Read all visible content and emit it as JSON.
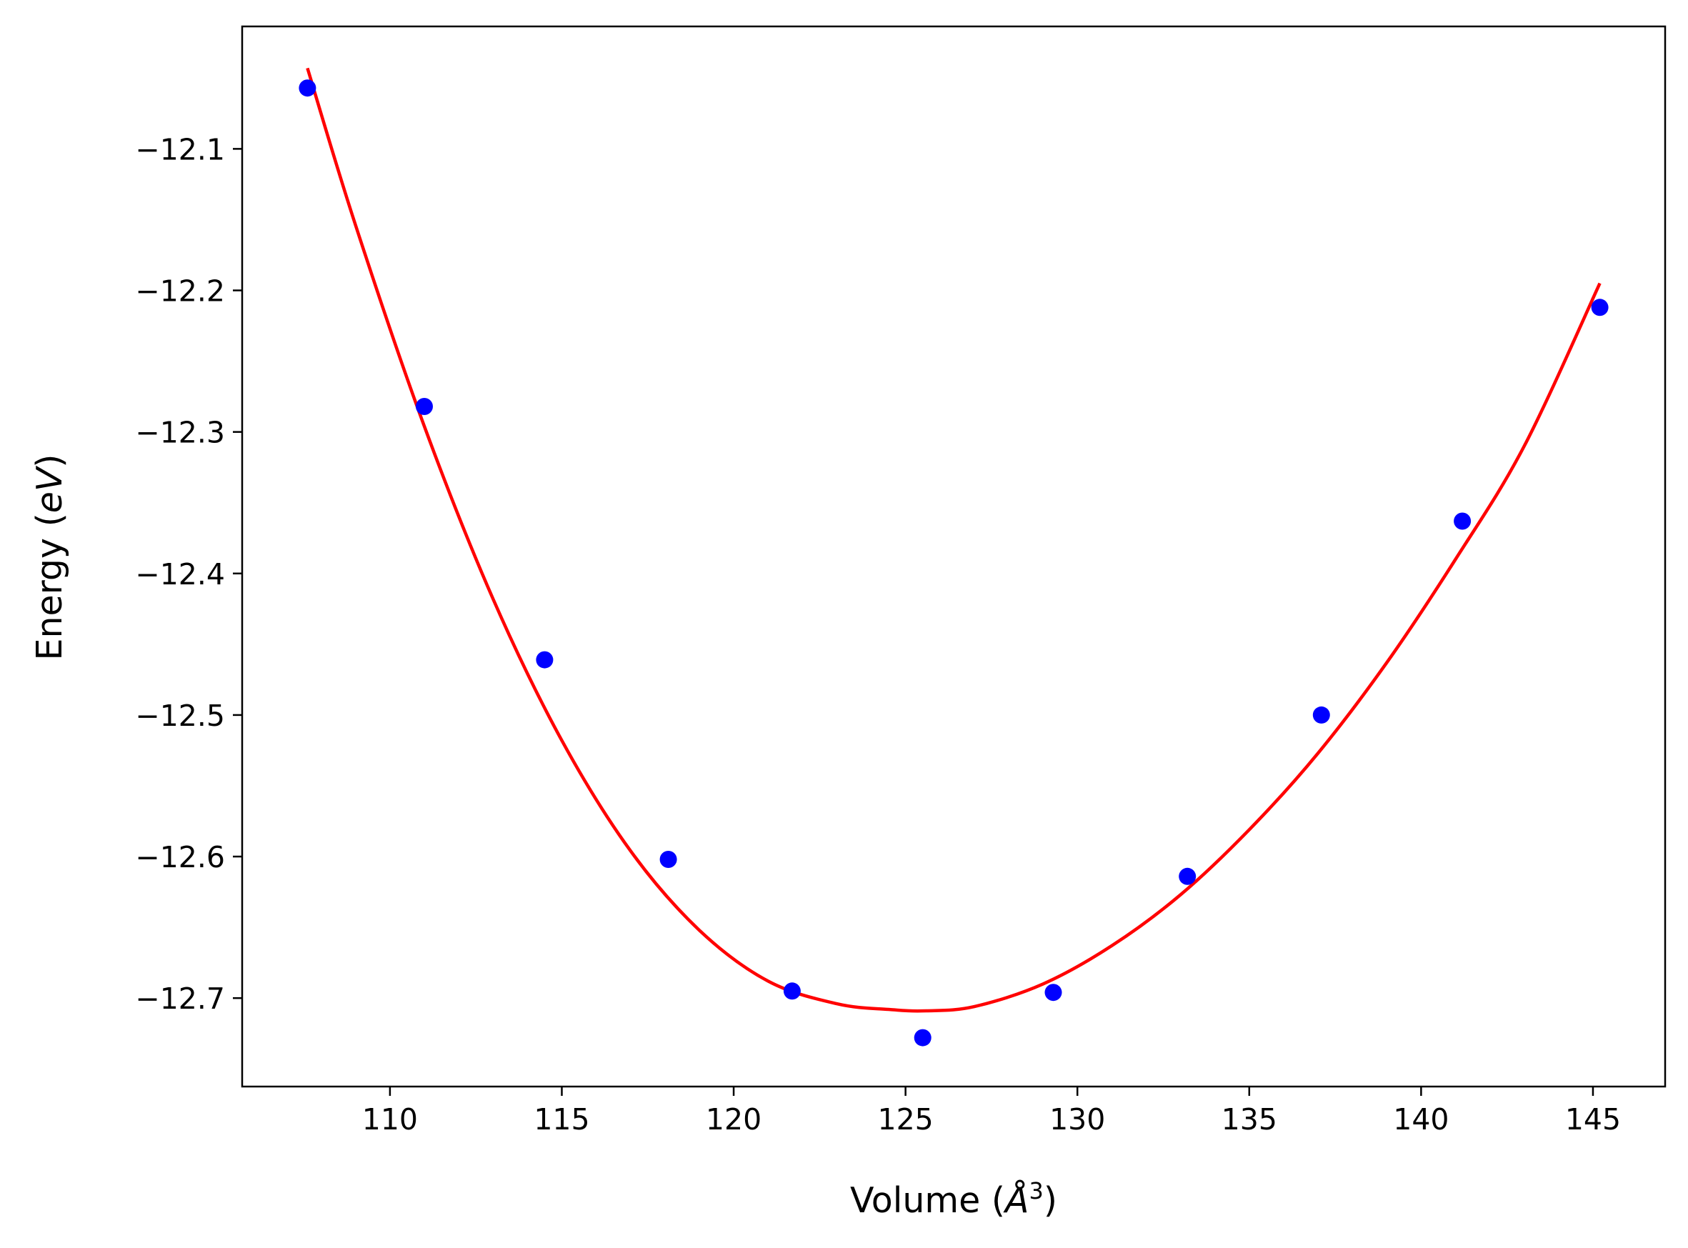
{
  "chart_data": {
    "type": "scatter",
    "title": "",
    "xlabel": "Volume (Å³)",
    "xlabel_parts": {
      "before": "Volume (",
      "symbol": "Å",
      "sup": "3",
      "after": ")"
    },
    "ylabel": "Energy (eV)",
    "ylabel_parts": {
      "before": "Energy (",
      "italic": "eV",
      "after": ")"
    },
    "xlim": [
      105.7,
      147.1
    ],
    "ylim": [
      -12.7625,
      -12.0135
    ],
    "xticks": [
      110,
      115,
      120,
      125,
      130,
      135,
      140,
      145
    ],
    "yticks": [
      -12.1,
      -12.2,
      -12.3,
      -12.4,
      -12.5,
      -12.6,
      -12.7
    ],
    "xtick_labels": [
      "110",
      "115",
      "120",
      "125",
      "130",
      "135",
      "140",
      "145"
    ],
    "ytick_labels": [
      "−12.1",
      "−12.2",
      "−12.3",
      "−12.4",
      "−12.5",
      "−12.6",
      "−12.7"
    ],
    "grid": false,
    "series": [
      {
        "kind": "points",
        "color": "#0000ff",
        "x": [
          107.6,
          111.0,
          114.5,
          118.1,
          121.7,
          125.5,
          129.3,
          133.2,
          137.1,
          141.2,
          145.2
        ],
        "y": [
          -12.057,
          -12.282,
          -12.461,
          -12.602,
          -12.695,
          -12.728,
          -12.696,
          -12.614,
          -12.5,
          -12.363,
          -12.212
        ]
      },
      {
        "kind": "fit-curve",
        "color": "#ff0000",
        "x": [
          107.6,
          109.0,
          111.0,
          113.0,
          115.0,
          117.0,
          119.0,
          121.0,
          123.0,
          124.5,
          125.6,
          127.0,
          129.0,
          131.0,
          133.0,
          135.0,
          137.0,
          139.0,
          141.0,
          143.0,
          145.2
        ],
        "y": [
          -12.043,
          -12.154,
          -12.296,
          -12.418,
          -12.518,
          -12.596,
          -12.652,
          -12.688,
          -12.704,
          -12.708,
          -12.709,
          -12.706,
          -12.69,
          -12.663,
          -12.627,
          -12.581,
          -12.527,
          -12.463,
          -12.39,
          -12.31,
          -12.195
        ]
      }
    ]
  }
}
